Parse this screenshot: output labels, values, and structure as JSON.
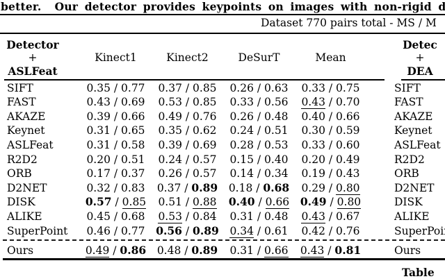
{
  "page": {
    "background_color": "#ffffff",
    "text_color": "#000000",
    "top_text": "better.  Our detector provides keypoints on images with non-rigid def",
    "caption_line": "Dataset 770 pairs total - MS / M",
    "bottom_caption": "Table"
  },
  "style_legend": {
    "b": "bold (best result)",
    "u": "underlined (second-best result)"
  },
  "left_table": {
    "header": {
      "line1": "Detector",
      "line2": "+",
      "line3": "ASLFeat"
    },
    "columns": [
      "Kinect1",
      "Kinect2",
      "DeSurT",
      "Mean"
    ],
    "rows": [
      {
        "name": "SIFT",
        "cells": [
          [
            "0.35",
            "",
            "0.77",
            ""
          ],
          [
            "0.37",
            "",
            "0.85",
            ""
          ],
          [
            "0.26",
            "",
            "0.63",
            ""
          ],
          [
            "0.33",
            "",
            "0.75",
            ""
          ]
        ]
      },
      {
        "name": "FAST",
        "cells": [
          [
            "0.43",
            "",
            "0.69",
            ""
          ],
          [
            "0.53",
            "",
            "0.85",
            ""
          ],
          [
            "0.33",
            "",
            "0.56",
            ""
          ],
          [
            "0.43",
            "u",
            "0.70",
            ""
          ]
        ]
      },
      {
        "name": "AKAZE",
        "cells": [
          [
            "0.39",
            "",
            "0.66",
            ""
          ],
          [
            "0.49",
            "",
            "0.76",
            ""
          ],
          [
            "0.26",
            "",
            "0.48",
            ""
          ],
          [
            "0.40",
            "",
            "0.66",
            ""
          ]
        ]
      },
      {
        "name": "Keynet",
        "cells": [
          [
            "0.31",
            "",
            "0.65",
            ""
          ],
          [
            "0.35",
            "",
            "0.62",
            ""
          ],
          [
            "0.24",
            "",
            "0.51",
            ""
          ],
          [
            "0.30",
            "",
            "0.59",
            ""
          ]
        ]
      },
      {
        "name": "ASLFeat",
        "cells": [
          [
            "0.31",
            "",
            "0.58",
            ""
          ],
          [
            "0.39",
            "",
            "0.69",
            ""
          ],
          [
            "0.28",
            "",
            "0.53",
            ""
          ],
          [
            "0.33",
            "",
            "0.60",
            ""
          ]
        ]
      },
      {
        "name": "R2D2",
        "cells": [
          [
            "0.20",
            "",
            "0.51",
            ""
          ],
          [
            "0.24",
            "",
            "0.57",
            ""
          ],
          [
            "0.15",
            "",
            "0.40",
            ""
          ],
          [
            "0.20",
            "",
            "0.49",
            ""
          ]
        ]
      },
      {
        "name": "ORB",
        "cells": [
          [
            "0.17",
            "",
            "0.37",
            ""
          ],
          [
            "0.26",
            "",
            "0.57",
            ""
          ],
          [
            "0.14",
            "",
            "0.34",
            ""
          ],
          [
            "0.19",
            "",
            "0.43",
            ""
          ]
        ]
      },
      {
        "name": "D2NET",
        "cells": [
          [
            "0.32",
            "",
            "0.83",
            ""
          ],
          [
            "0.37",
            "",
            "0.89",
            "b"
          ],
          [
            "0.18",
            "",
            "0.68",
            "b"
          ],
          [
            "0.29",
            "",
            "0.80",
            "u"
          ]
        ]
      },
      {
        "name": "DISK",
        "cells": [
          [
            "0.57",
            "b",
            "0.85",
            "u"
          ],
          [
            "0.51",
            "",
            "0.88",
            "u"
          ],
          [
            "0.40",
            "b",
            "0.66",
            "u"
          ],
          [
            "0.49",
            "b",
            "0.80",
            "u"
          ]
        ]
      },
      {
        "name": "ALIKE",
        "cells": [
          [
            "0.45",
            "",
            "0.68",
            ""
          ],
          [
            "0.53",
            "u",
            "0.84",
            ""
          ],
          [
            "0.31",
            "",
            "0.48",
            ""
          ],
          [
            "0.43",
            "u",
            "0.67",
            ""
          ]
        ]
      },
      {
        "name": "SuperPoint",
        "cells": [
          [
            "0.46",
            "",
            "0.77",
            ""
          ],
          [
            "0.56",
            "b",
            "0.89",
            "b"
          ],
          [
            "0.34",
            "u",
            "0.61",
            ""
          ],
          [
            "0.42",
            "",
            "0.76",
            ""
          ]
        ]
      }
    ],
    "ours": {
      "name": "Ours",
      "cells": [
        [
          "0.49",
          "u",
          "0.86",
          "b"
        ],
        [
          "0.48",
          "",
          "0.89",
          "b"
        ],
        [
          "0.31",
          "",
          "0.66",
          "u"
        ],
        [
          "0.43",
          "u",
          "0.81",
          "b"
        ]
      ]
    }
  },
  "right_table": {
    "header": {
      "line1": "Detec",
      "line2": "+",
      "line3": "DEA"
    }
  }
}
